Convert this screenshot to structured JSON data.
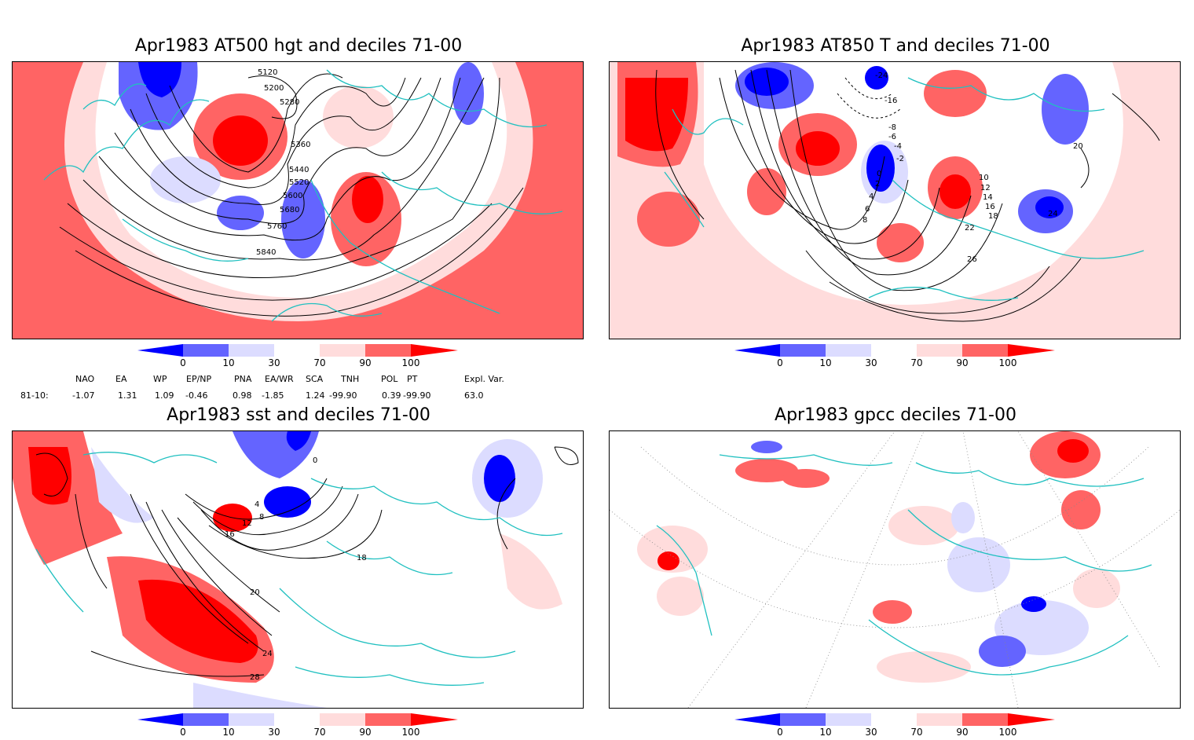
{
  "panels": {
    "p1": {
      "title": "Apr1983 AT500 hgt and deciles 71-00",
      "contour_labels": [
        "5120",
        "5200",
        "5280",
        "5360",
        "5440",
        "5520",
        "5600",
        "5680",
        "5760",
        "5840"
      ]
    },
    "p2": {
      "title": "Apr1983 AT850 T and deciles 71-00",
      "contour_labels": [
        "-24",
        "-16",
        "-8",
        "-6",
        "-4",
        "-2",
        "0",
        "2",
        "4",
        "6",
        "8",
        "10",
        "12",
        "14",
        "16",
        "18",
        "20",
        "22",
        "24",
        "26"
      ]
    },
    "p3": {
      "title": "Apr1983 sst and deciles 71-00",
      "contour_labels": [
        "0",
        "4",
        "8",
        "12",
        "16",
        "18",
        "20",
        "24",
        "28"
      ]
    },
    "p4": {
      "title": "Apr1983 gpcc deciles 71-00"
    }
  },
  "colorbar": {
    "ticks": [
      "0",
      "10",
      "30",
      "70",
      "90",
      "100"
    ],
    "colors": {
      "below_0": "#0000ff",
      "0_10": "#6464ff",
      "10_30": "#dcdcff",
      "30_70": "#ffffff",
      "70_90": "#ffdcdc",
      "90_100": "#ff6464",
      "above_100": "#ff0000"
    }
  },
  "teleconnections": {
    "row_label": "81-10:",
    "headers": [
      "NAO",
      "EA",
      "WP",
      "EP/NP",
      "PNA",
      "EA/WR",
      "SCA",
      "TNH",
      "POL",
      "PT",
      "Expl. Var."
    ],
    "values": [
      "-1.07",
      "1.31",
      "1.09",
      "-0.46",
      "0.98",
      "-1.85",
      "1.24",
      "-99.90",
      "0.39",
      "-99.90",
      "63.0"
    ]
  },
  "map_colors": {
    "coast": "#20c0c0",
    "contour": "#000000",
    "graticule": "#888888"
  }
}
